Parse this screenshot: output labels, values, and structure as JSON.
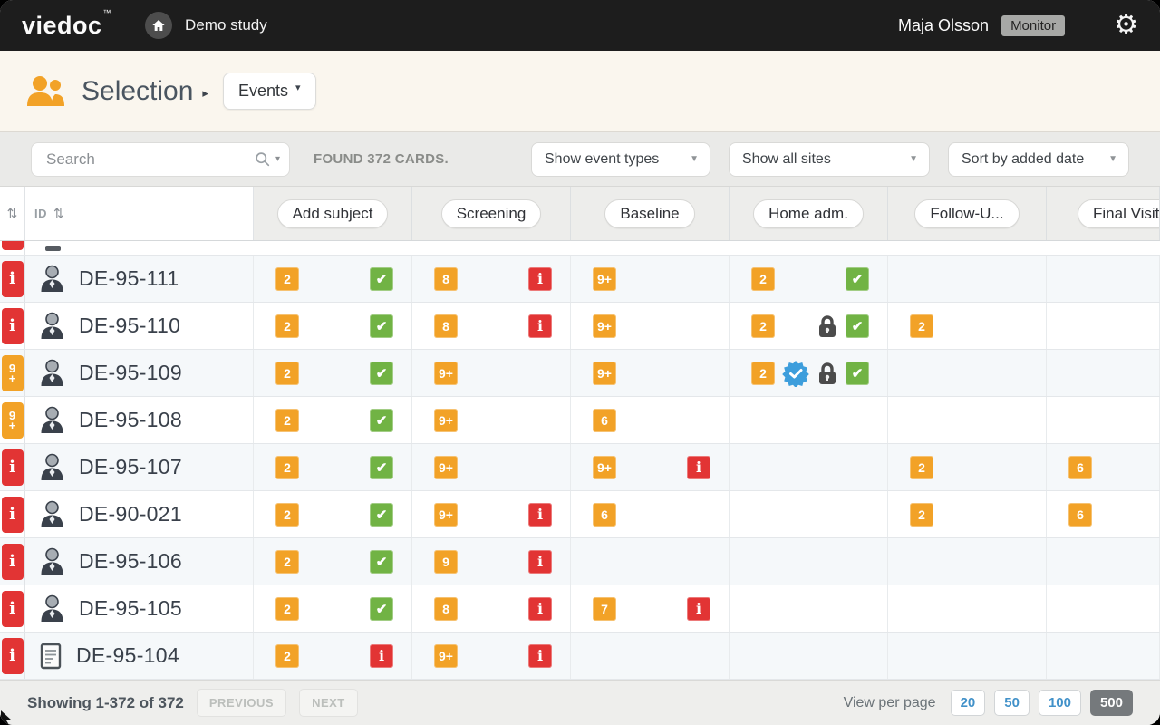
{
  "topbar": {
    "logo": "viedoc",
    "trademark": "™",
    "study": "Demo study",
    "user": "Maja Olsson",
    "role": "Monitor"
  },
  "header": {
    "title": "Selection",
    "view_label": "Events"
  },
  "filters": {
    "search_placeholder": "Search",
    "found": "FOUND 372 CARDS.",
    "event_types": "Show event types",
    "sites": "Show all sites",
    "sort": "Sort by added date"
  },
  "table": {
    "id_header": "ID",
    "columns": [
      "Add subject",
      "Screening",
      "Baseline",
      "Home adm.",
      "Follow-U...",
      "Final Visit"
    ],
    "rows": [
      {
        "id": "DE-95-111",
        "flag": {
          "t": "info"
        },
        "icon": "person",
        "cells": [
          {
            "left": [
              {
                "t": "count",
                "v": "2"
              }
            ],
            "right": [
              {
                "t": "check"
              }
            ]
          },
          {
            "left": [
              {
                "t": "count",
                "v": "8"
              }
            ],
            "right": [
              {
                "t": "info"
              }
            ]
          },
          {
            "left": [
              {
                "t": "count",
                "v": "9+"
              }
            ],
            "right": []
          },
          {
            "left": [
              {
                "t": "count",
                "v": "2"
              }
            ],
            "right": [
              {
                "t": "check"
              }
            ]
          },
          {
            "left": [],
            "right": []
          },
          {
            "left": [],
            "right": []
          }
        ]
      },
      {
        "id": "DE-95-110",
        "flag": {
          "t": "info"
        },
        "icon": "person",
        "cells": [
          {
            "left": [
              {
                "t": "count",
                "v": "2"
              }
            ],
            "right": [
              {
                "t": "check"
              }
            ]
          },
          {
            "left": [
              {
                "t": "count",
                "v": "8"
              }
            ],
            "right": [
              {
                "t": "info"
              }
            ]
          },
          {
            "left": [
              {
                "t": "count",
                "v": "9+"
              }
            ],
            "right": []
          },
          {
            "left": [
              {
                "t": "count",
                "v": "2"
              }
            ],
            "right": [
              {
                "t": "lock"
              },
              {
                "t": "check"
              }
            ]
          },
          {
            "left": [
              {
                "t": "count",
                "v": "2"
              }
            ],
            "right": []
          },
          {
            "left": [],
            "right": []
          }
        ]
      },
      {
        "id": "DE-95-109",
        "flag": {
          "t": "count",
          "v": "9+"
        },
        "icon": "person",
        "cells": [
          {
            "left": [
              {
                "t": "count",
                "v": "2"
              }
            ],
            "right": [
              {
                "t": "check"
              }
            ]
          },
          {
            "left": [
              {
                "t": "count",
                "v": "9+"
              }
            ],
            "right": []
          },
          {
            "left": [
              {
                "t": "count",
                "v": "9+"
              }
            ],
            "right": []
          },
          {
            "left": [
              {
                "t": "count",
                "v": "2"
              }
            ],
            "right": [
              {
                "t": "verified"
              },
              {
                "t": "lock"
              },
              {
                "t": "check"
              }
            ]
          },
          {
            "left": [],
            "right": []
          },
          {
            "left": [],
            "right": []
          }
        ]
      },
      {
        "id": "DE-95-108",
        "flag": {
          "t": "count",
          "v": "9+"
        },
        "icon": "person",
        "cells": [
          {
            "left": [
              {
                "t": "count",
                "v": "2"
              }
            ],
            "right": [
              {
                "t": "check"
              }
            ]
          },
          {
            "left": [
              {
                "t": "count",
                "v": "9+"
              }
            ],
            "right": []
          },
          {
            "left": [
              {
                "t": "count",
                "v": "6"
              }
            ],
            "right": []
          },
          {
            "left": [],
            "right": []
          },
          {
            "left": [],
            "right": []
          },
          {
            "left": [],
            "right": []
          }
        ]
      },
      {
        "id": "DE-95-107",
        "flag": {
          "t": "info"
        },
        "icon": "person",
        "cells": [
          {
            "left": [
              {
                "t": "count",
                "v": "2"
              }
            ],
            "right": [
              {
                "t": "check"
              }
            ]
          },
          {
            "left": [
              {
                "t": "count",
                "v": "9+"
              }
            ],
            "right": []
          },
          {
            "left": [
              {
                "t": "count",
                "v": "9+"
              }
            ],
            "right": [
              {
                "t": "info"
              }
            ]
          },
          {
            "left": [],
            "right": []
          },
          {
            "left": [
              {
                "t": "count",
                "v": "2"
              }
            ],
            "right": []
          },
          {
            "left": [
              {
                "t": "count",
                "v": "6"
              }
            ],
            "right": []
          }
        ]
      },
      {
        "id": "DE-90-021",
        "flag": {
          "t": "info"
        },
        "icon": "person",
        "cells": [
          {
            "left": [
              {
                "t": "count",
                "v": "2"
              }
            ],
            "right": [
              {
                "t": "check"
              }
            ]
          },
          {
            "left": [
              {
                "t": "count",
                "v": "9+"
              }
            ],
            "right": [
              {
                "t": "info"
              }
            ]
          },
          {
            "left": [
              {
                "t": "count",
                "v": "6"
              }
            ],
            "right": []
          },
          {
            "left": [],
            "right": []
          },
          {
            "left": [
              {
                "t": "count",
                "v": "2"
              }
            ],
            "right": []
          },
          {
            "left": [
              {
                "t": "count",
                "v": "6"
              }
            ],
            "right": []
          }
        ]
      },
      {
        "id": "DE-95-106",
        "flag": {
          "t": "info"
        },
        "icon": "person",
        "cells": [
          {
            "left": [
              {
                "t": "count",
                "v": "2"
              }
            ],
            "right": [
              {
                "t": "check"
              }
            ]
          },
          {
            "left": [
              {
                "t": "count",
                "v": "9"
              }
            ],
            "right": [
              {
                "t": "info"
              }
            ]
          },
          {
            "left": [],
            "right": []
          },
          {
            "left": [],
            "right": []
          },
          {
            "left": [],
            "right": []
          },
          {
            "left": [],
            "right": []
          }
        ]
      },
      {
        "id": "DE-95-105",
        "flag": {
          "t": "info"
        },
        "icon": "person",
        "cells": [
          {
            "left": [
              {
                "t": "count",
                "v": "2"
              }
            ],
            "right": [
              {
                "t": "check"
              }
            ]
          },
          {
            "left": [
              {
                "t": "count",
                "v": "8"
              }
            ],
            "right": [
              {
                "t": "info"
              }
            ]
          },
          {
            "left": [
              {
                "t": "count",
                "v": "7"
              }
            ],
            "right": [
              {
                "t": "info"
              }
            ]
          },
          {
            "left": [],
            "right": []
          },
          {
            "left": [],
            "right": []
          },
          {
            "left": [],
            "right": []
          }
        ]
      },
      {
        "id": "DE-95-104",
        "flag": {
          "t": "info"
        },
        "icon": "document",
        "cells": [
          {
            "left": [
              {
                "t": "count",
                "v": "2"
              }
            ],
            "right": [
              {
                "t": "info"
              }
            ]
          },
          {
            "left": [
              {
                "t": "count",
                "v": "9+"
              }
            ],
            "right": [
              {
                "t": "info"
              }
            ]
          },
          {
            "left": [],
            "right": []
          },
          {
            "left": [],
            "right": []
          },
          {
            "left": [],
            "right": []
          },
          {
            "left": [],
            "right": []
          }
        ]
      }
    ]
  },
  "footer": {
    "showing": "Showing 1-372 of 372",
    "previous": "PREVIOUS",
    "next": "NEXT",
    "view_per_page": "View per page",
    "page_sizes": [
      "20",
      "50",
      "100",
      "500"
    ],
    "active_page_size": "500"
  },
  "colors": {
    "topbar_bg": "#1d1d1d",
    "header_bg": "#faf6ee",
    "orange": "#f2a227",
    "green": "#71b344",
    "red": "#e23434",
    "verified_blue": "#3d9edc",
    "lock_gray": "#4b4b4b",
    "active_page_bg": "#75797c",
    "page_size_blue": "#4191c9"
  }
}
